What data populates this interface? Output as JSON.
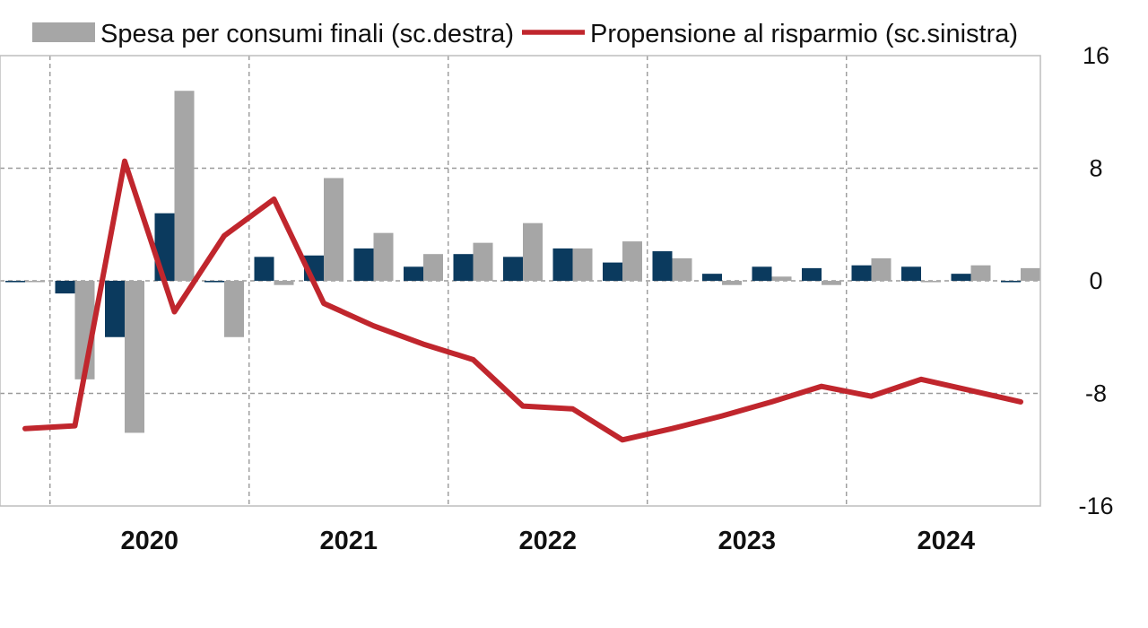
{
  "chart_data": {
    "type": "bar+line",
    "categories": [
      "2019-Q4",
      "2020-Q1",
      "2020-Q2",
      "2020-Q3",
      "2020-Q4",
      "2021-Q1",
      "2021-Q2",
      "2021-Q3",
      "2021-Q4",
      "2022-Q1",
      "2022-Q2",
      "2022-Q3",
      "2022-Q4",
      "2023-Q1",
      "2023-Q2",
      "2023-Q3",
      "2023-Q4",
      "2024-Q1",
      "2024-Q2",
      "2024-Q3",
      "2024-Q4"
    ],
    "year_labels": [
      "2020",
      "2021",
      "2022",
      "2023",
      "2024"
    ],
    "y_ticks": [
      "16",
      "8",
      "0",
      "-8",
      "-16"
    ],
    "ylim": [
      -16,
      16
    ],
    "grid": true,
    "legend_position": "top",
    "series": [
      {
        "legend_label": "",
        "kind": "bar",
        "color": "#0b3a5e",
        "values": [
          -0.1,
          -0.9,
          -4.0,
          4.8,
          -0.1,
          1.7,
          1.8,
          2.3,
          1.0,
          1.9,
          1.7,
          2.3,
          1.3,
          2.1,
          0.5,
          1.0,
          0.9,
          1.1,
          1.0,
          0.5,
          -0.1
        ]
      },
      {
        "legend_label": "Spesa per consumi finali (sc.destra)",
        "kind": "bar",
        "color": "#a6a6a6",
        "values": [
          0.0,
          -7.0,
          -10.8,
          13.5,
          -4.0,
          -0.3,
          7.3,
          3.4,
          1.9,
          2.7,
          4.1,
          2.3,
          2.8,
          1.6,
          -0.3,
          0.3,
          -0.3,
          1.6,
          -0.1,
          1.1,
          0.9
        ]
      },
      {
        "legend_label": "Propensione al risparmio (sc.sinistra)",
        "kind": "line",
        "color": "#c0262d",
        "values": [
          -10.5,
          -10.3,
          8.5,
          -2.2,
          3.2,
          5.8,
          -1.6,
          -3.2,
          -4.5,
          -5.6,
          -8.9,
          -9.1,
          -11.3,
          -10.5,
          -9.6,
          -8.6,
          -7.5,
          -8.2,
          -7.0,
          -7.8,
          -8.6
        ]
      }
    ]
  }
}
